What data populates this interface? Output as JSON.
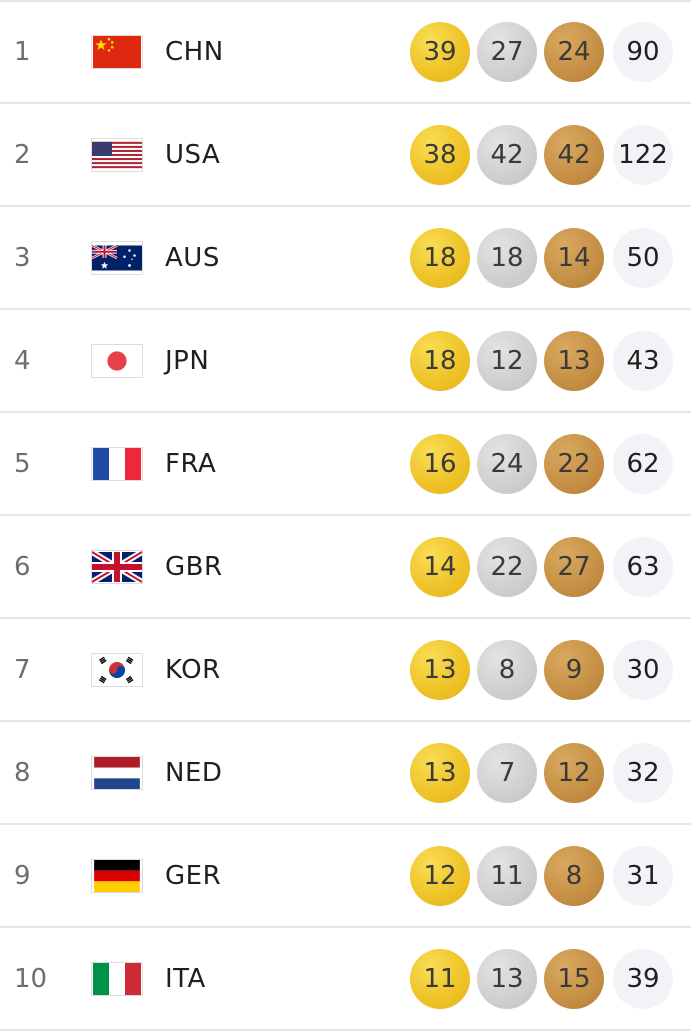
{
  "rows": [
    {
      "rank": "1",
      "code": "CHN",
      "flag": "china-flag-icon",
      "gold": "39",
      "silver": "27",
      "bronze": "24",
      "total": "90"
    },
    {
      "rank": "2",
      "code": "USA",
      "flag": "usa-flag-icon",
      "gold": "38",
      "silver": "42",
      "bronze": "42",
      "total": "122"
    },
    {
      "rank": "3",
      "code": "AUS",
      "flag": "australia-flag-icon",
      "gold": "18",
      "silver": "18",
      "bronze": "14",
      "total": "50"
    },
    {
      "rank": "4",
      "code": "JPN",
      "flag": "japan-flag-icon",
      "gold": "18",
      "silver": "12",
      "bronze": "13",
      "total": "43"
    },
    {
      "rank": "5",
      "code": "FRA",
      "flag": "france-flag-icon",
      "gold": "16",
      "silver": "24",
      "bronze": "22",
      "total": "62"
    },
    {
      "rank": "6",
      "code": "GBR",
      "flag": "uk-flag-icon",
      "gold": "14",
      "silver": "22",
      "bronze": "27",
      "total": "63"
    },
    {
      "rank": "7",
      "code": "KOR",
      "flag": "south-korea-flag-icon",
      "gold": "13",
      "silver": "8",
      "bronze": "9",
      "total": "30"
    },
    {
      "rank": "8",
      "code": "NED",
      "flag": "netherlands-flag-icon",
      "gold": "13",
      "silver": "7",
      "bronze": "12",
      "total": "32"
    },
    {
      "rank": "9",
      "code": "GER",
      "flag": "germany-flag-icon",
      "gold": "12",
      "silver": "11",
      "bronze": "8",
      "total": "31"
    },
    {
      "rank": "10",
      "code": "ITA",
      "flag": "italy-flag-icon",
      "gold": "11",
      "silver": "13",
      "bronze": "15",
      "total": "39"
    }
  ],
  "colors": {
    "gold": "#efc42a",
    "silver": "#cfcfcf",
    "bronze": "#c58f45",
    "total_bg": "#f2f3f6",
    "divider": "#e6e6e6"
  }
}
